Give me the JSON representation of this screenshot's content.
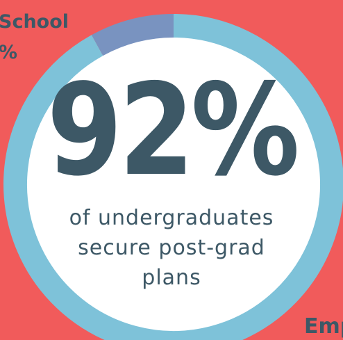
{
  "stat": {
    "value": "92%",
    "caption_line1": "of undergraduates",
    "caption_line2": "secure post-grad",
    "caption_line3": "plans"
  },
  "cropped_labels": {
    "top_left_line1": "School",
    "top_left_line2": "%",
    "bottom_right": "Emp"
  },
  "chart_data": {
    "type": "pie",
    "style": "donut",
    "slices": [
      {
        "label": "",
        "value": 92,
        "color": "#7ec2d9"
      },
      {
        "label": "",
        "value": 8,
        "color": "#7993c0"
      }
    ]
  },
  "colors": {
    "background": "#f15b5b",
    "ring_main": "#7ec2d9",
    "ring_secondary": "#7993c0",
    "inner_circle": "#ffffff",
    "text": "#3d5866"
  }
}
